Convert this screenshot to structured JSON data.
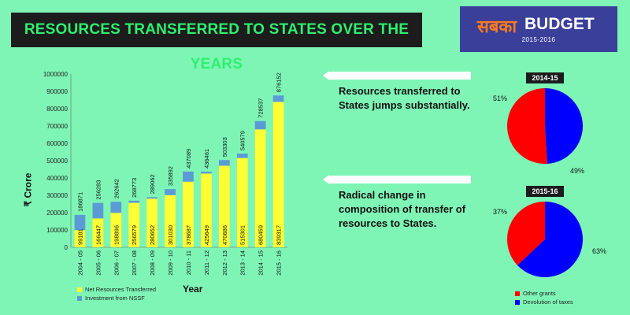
{
  "header": {
    "title": "RESOURCES TRANSFERRED TO STATES OVER THE YEARS",
    "logo_hindi": "सबका",
    "logo_budget": "BUDGET",
    "logo_year": "2015-2016"
  },
  "chart_data": [
    {
      "type": "bar",
      "stacked": true,
      "categories": [
        "2004 - 05",
        "2005 - 06",
        "2006 - 07",
        "2007 - 08",
        "2008 - 09",
        "2009 - 10",
        "2010 - 11",
        "2011 - 12",
        "2012 - 13",
        "2013 - 14",
        "2014 - 15",
        "2015 - 16"
      ],
      "series": [
        {
          "name": "Net Resources Transferred",
          "color": "#ffff33",
          "values": [
            99181,
            166447,
            198896,
            256579,
            280652,
            301030,
            378687,
            425649,
            470686,
            515301,
            680459,
            839317
          ]
        },
        {
          "name": "Investment from NSSF",
          "color": "#5b9bd5",
          "values": [
            87690,
            89836,
            63746,
            12194,
            8410,
            34862,
            58402,
            10812,
            32617,
            25278,
            48078,
            36835
          ]
        }
      ],
      "totals": [
        186871,
        256283,
        262642,
        268773,
        289062,
        335892,
        437089,
        436461,
        503303,
        540579,
        728537,
        876152
      ],
      "xlabel": "Year",
      "ylabel": "₹ Crore",
      "ylim": [
        0,
        1000000
      ],
      "yticks": [
        "0",
        "100000",
        "200000",
        "300000",
        "400000",
        "500000",
        "600000",
        "700000",
        "800000",
        "900000",
        "1000000"
      ],
      "grid": false,
      "legend": "bottom-left"
    },
    {
      "type": "pie",
      "title": "2014-15",
      "labels": [
        "Other grants",
        "Devolution of taxes"
      ],
      "values": [
        51,
        49
      ],
      "value_labels": [
        "51%",
        "49%"
      ],
      "colors": [
        "#ff0000",
        "#0000ff"
      ]
    },
    {
      "type": "pie",
      "title": "2015-16",
      "labels": [
        "Other grants",
        "Devolution of taxes"
      ],
      "values": [
        37,
        63
      ],
      "value_labels": [
        "37%",
        "63%"
      ],
      "colors": [
        "#ff0000",
        "#0000ff"
      ]
    }
  ],
  "callouts": [
    "Resources transferred to States jumps substantially.",
    "Radical change in composition of transfer of resources to States."
  ]
}
